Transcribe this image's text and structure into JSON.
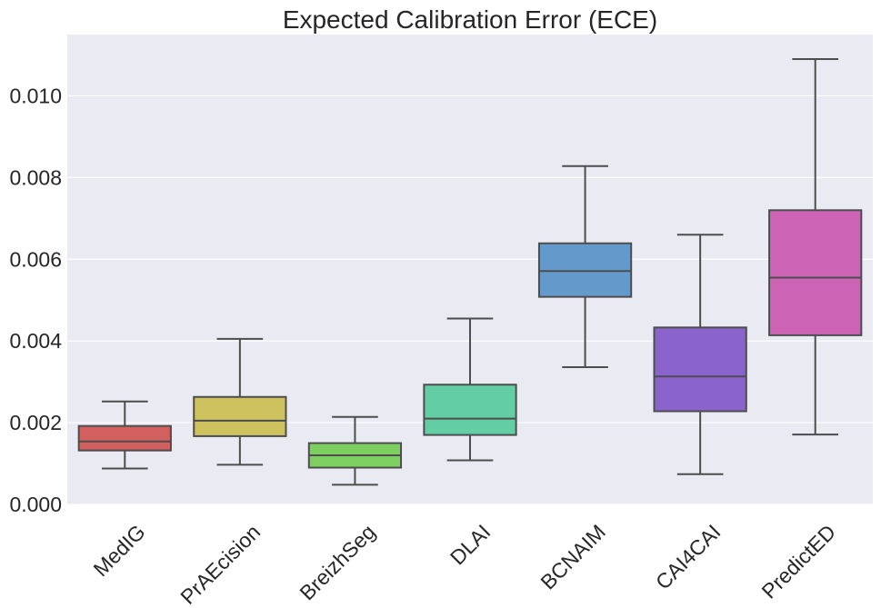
{
  "chart_data": {
    "type": "box",
    "title": "Expected Calibration Error (ECE)",
    "xlabel": "",
    "ylabel": "",
    "ylim": [
      0.0,
      0.0115
    ],
    "yticks": [
      0.0,
      0.002,
      0.004,
      0.006,
      0.008,
      0.01
    ],
    "ytick_labels": [
      "0.000",
      "0.002",
      "0.004",
      "0.006",
      "0.008",
      "0.010"
    ],
    "grid": true,
    "background": "#eaeaf2",
    "line_color": "#4d4d4d",
    "categories": [
      "MedIG",
      "PrAEcision",
      "BreizhSeg",
      "DLAI",
      "BCNAIM",
      "CAI4CAI",
      "PredictED"
    ],
    "boxes": [
      {
        "name": "MedIG",
        "whisker_low": 0.00088,
        "q1": 0.00132,
        "median": 0.00154,
        "q3": 0.00192,
        "whisker_high": 0.00252,
        "color": "#d1605e"
      },
      {
        "name": "PrAEcision",
        "whisker_low": 0.00097,
        "q1": 0.00167,
        "median": 0.00205,
        "q3": 0.00263,
        "whisker_high": 0.00405,
        "color": "#cdc25e"
      },
      {
        "name": "BreizhSeg",
        "whisker_low": 0.00048,
        "q1": 0.0009,
        "median": 0.0012,
        "q3": 0.0015,
        "whisker_high": 0.00214,
        "color": "#7dcf5f"
      },
      {
        "name": "DLAI",
        "whisker_low": 0.00108,
        "q1": 0.0017,
        "median": 0.0021,
        "q3": 0.00293,
        "whisker_high": 0.00455,
        "color": "#63cda3"
      },
      {
        "name": "BCNAIM",
        "whisker_low": 0.00336,
        "q1": 0.00508,
        "median": 0.00571,
        "q3": 0.00639,
        "whisker_high": 0.00828,
        "color": "#6499cc"
      },
      {
        "name": "CAI4CAI",
        "whisker_low": 0.00074,
        "q1": 0.00228,
        "median": 0.00313,
        "q3": 0.00433,
        "whisker_high": 0.0066,
        "color": "#8a63cd"
      },
      {
        "name": "PredictED",
        "whisker_low": 0.00171,
        "q1": 0.00414,
        "median": 0.00555,
        "q3": 0.0072,
        "whisker_high": 0.0109,
        "color": "#cd63b5"
      }
    ]
  }
}
